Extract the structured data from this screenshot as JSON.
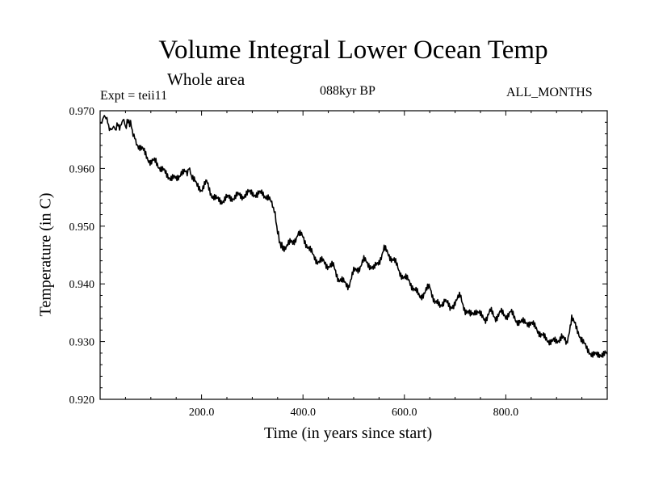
{
  "header": {
    "title": "Volume Integral Lower Ocean Temp",
    "subtitle": "Whole area",
    "expt": "Expt = teii11",
    "period": "088kyr BP",
    "months": "ALL_MONTHS"
  },
  "chart_data": {
    "type": "line",
    "title": "Volume Integral Lower Ocean Temp",
    "subtitle": "Whole area",
    "xlabel": "Time (in years since start)",
    "ylabel": "Temperature (in C)",
    "xlim": [
      0,
      1000
    ],
    "ylim": [
      0.92,
      0.97
    ],
    "xticks": [
      200,
      400,
      600,
      800
    ],
    "xtick_labels": [
      "200.0",
      "400.0",
      "600.0",
      "800.0"
    ],
    "yticks": [
      0.92,
      0.93,
      0.94,
      0.95,
      0.96,
      0.97
    ],
    "ytick_labels": [
      "0.920",
      "0.930",
      "0.940",
      "0.950",
      "0.960",
      "0.970"
    ],
    "grid": false,
    "line_color": "#000000",
    "series": [
      {
        "x": [
          0,
          5,
          10,
          15,
          20,
          25,
          30,
          35,
          40,
          45,
          50,
          55,
          60,
          65,
          70,
          80,
          90,
          100,
          110,
          120,
          130,
          140,
          150,
          160,
          170,
          175,
          180,
          190,
          200,
          210,
          220,
          230,
          240,
          250,
          260,
          270,
          280,
          290,
          300,
          310,
          320,
          330,
          340,
          345,
          350,
          355,
          360,
          370,
          380,
          390,
          400,
          410,
          420,
          430,
          440,
          450,
          460,
          470,
          480,
          490,
          500,
          510,
          520,
          530,
          540,
          550,
          560,
          570,
          580,
          590,
          600,
          610,
          620,
          630,
          640,
          650,
          660,
          670,
          680,
          690,
          700,
          710,
          720,
          730,
          740,
          750,
          760,
          770,
          780,
          790,
          800,
          810,
          820,
          830,
          840,
          850,
          860,
          870,
          880,
          890,
          900,
          910,
          920,
          930,
          940,
          950,
          960,
          970,
          980,
          990,
          1000
        ],
        "y": [
          0.9675,
          0.9685,
          0.9692,
          0.968,
          0.9665,
          0.9672,
          0.9668,
          0.9676,
          0.967,
          0.9687,
          0.9672,
          0.9682,
          0.9678,
          0.966,
          0.9648,
          0.9635,
          0.9625,
          0.961,
          0.9612,
          0.96,
          0.959,
          0.9585,
          0.958,
          0.9595,
          0.959,
          0.96,
          0.959,
          0.957,
          0.9565,
          0.9575,
          0.9555,
          0.9545,
          0.9545,
          0.9548,
          0.955,
          0.9552,
          0.9553,
          0.9555,
          0.956,
          0.9552,
          0.956,
          0.9548,
          0.9538,
          0.952,
          0.949,
          0.947,
          0.9462,
          0.947,
          0.947,
          0.9488,
          0.948,
          0.9465,
          0.9448,
          0.944,
          0.9438,
          0.9432,
          0.943,
          0.941,
          0.9402,
          0.9398,
          0.942,
          0.9428,
          0.944,
          0.9435,
          0.9425,
          0.944,
          0.946,
          0.945,
          0.944,
          0.9422,
          0.941,
          0.9405,
          0.939,
          0.9378,
          0.9385,
          0.9395,
          0.937,
          0.936,
          0.9375,
          0.9355,
          0.937,
          0.9378,
          0.9355,
          0.9345,
          0.9355,
          0.9345,
          0.934,
          0.9352,
          0.9342,
          0.935,
          0.9345,
          0.935,
          0.9338,
          0.9332,
          0.9335,
          0.933,
          0.9325,
          0.931,
          0.9305,
          0.93,
          0.93,
          0.931,
          0.9295,
          0.9343,
          0.932,
          0.9305,
          0.9285,
          0.928,
          0.9275,
          0.928,
          0.9278
        ]
      }
    ]
  }
}
